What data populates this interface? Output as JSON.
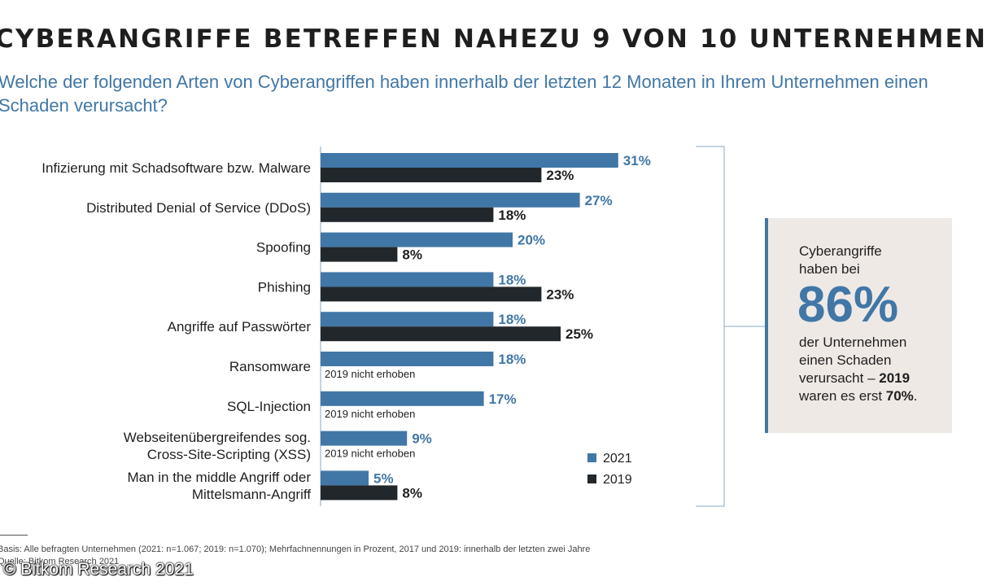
{
  "header": {
    "title": "CYBERANGRIFFE BETREFFEN NAHEZU 9 VON 10 UNTERNEHMEN",
    "subtitle": "Welche der folgenden Arten von Cyberangriffen haben innerhalb der letzten 12 Monaten in Ihrem Unternehmen einen Schaden verursacht?"
  },
  "chart_data": {
    "type": "bar",
    "orientation": "horizontal",
    "title": "CYBERANGRIFFE BETREFFEN NAHEZU 9 VON 10 UNTERNEHMEN",
    "xlabel": "",
    "ylabel": "",
    "xlim": [
      0,
      35
    ],
    "unit": "%",
    "grid": false,
    "legend_position": "bottom-right",
    "categories": [
      "Infizierung mit Schadsoftware bzw. Malware",
      "Distributed Denial of Service (DDoS)",
      "Spoofing",
      "Phishing",
      "Angriffe auf Passwörter",
      "Ransomware",
      "SQL-Injection",
      "Webseitenübergreifendes sog. Cross-Site-Scripting (XSS)",
      "Man in the middle Angriff oder Mittelsmann-Angriff"
    ],
    "category_lines": [
      [
        "Infizierung mit Schadsoftware bzw. Malware"
      ],
      [
        "Distributed Denial of Service (DDoS)"
      ],
      [
        "Spoofing"
      ],
      [
        "Phishing"
      ],
      [
        "Angriffe auf Passwörter"
      ],
      [
        "Ransomware"
      ],
      [
        "SQL-Injection"
      ],
      [
        "Webseitenübergreifendes sog.",
        "Cross-Site-Scripting (XSS)"
      ],
      [
        "Man in the middle Angriff oder",
        "Mittelsmann-Angriff"
      ]
    ],
    "series": [
      {
        "name": "2021",
        "color": "#4177a6",
        "values": [
          31,
          27,
          20,
          18,
          18,
          18,
          17,
          9,
          5
        ]
      },
      {
        "name": "2019",
        "color": "#22272c",
        "values": [
          23,
          18,
          8,
          23,
          25,
          null,
          null,
          null,
          8
        ]
      }
    ],
    "missing_note": "2019 nicht erhoben"
  },
  "callout": {
    "line1": "Cyberangriffe",
    "line2": "haben bei",
    "big": "86%",
    "line3": "der Unternehmen",
    "line4": "einen Schaden",
    "line5a": "verursacht – ",
    "line5b": "2019",
    "line6a": "waren es erst ",
    "line6b": "70%",
    "line6c": "."
  },
  "footer": {
    "basis": "Basis: Alle befragten Unternehmen (2021: n=1.067; 2019: n=1.070); Mehrfachnennungen in Prozent, 2017 und 2019: innerhalb der letzten zwei Jahre",
    "source": "Quelle: Bitkom Research 2021",
    "copyright": "© Bitkom Research 2021"
  },
  "colors": {
    "accent": "#4177a6",
    "dark": "#22272c",
    "callout_bg": "#efe9e6"
  }
}
